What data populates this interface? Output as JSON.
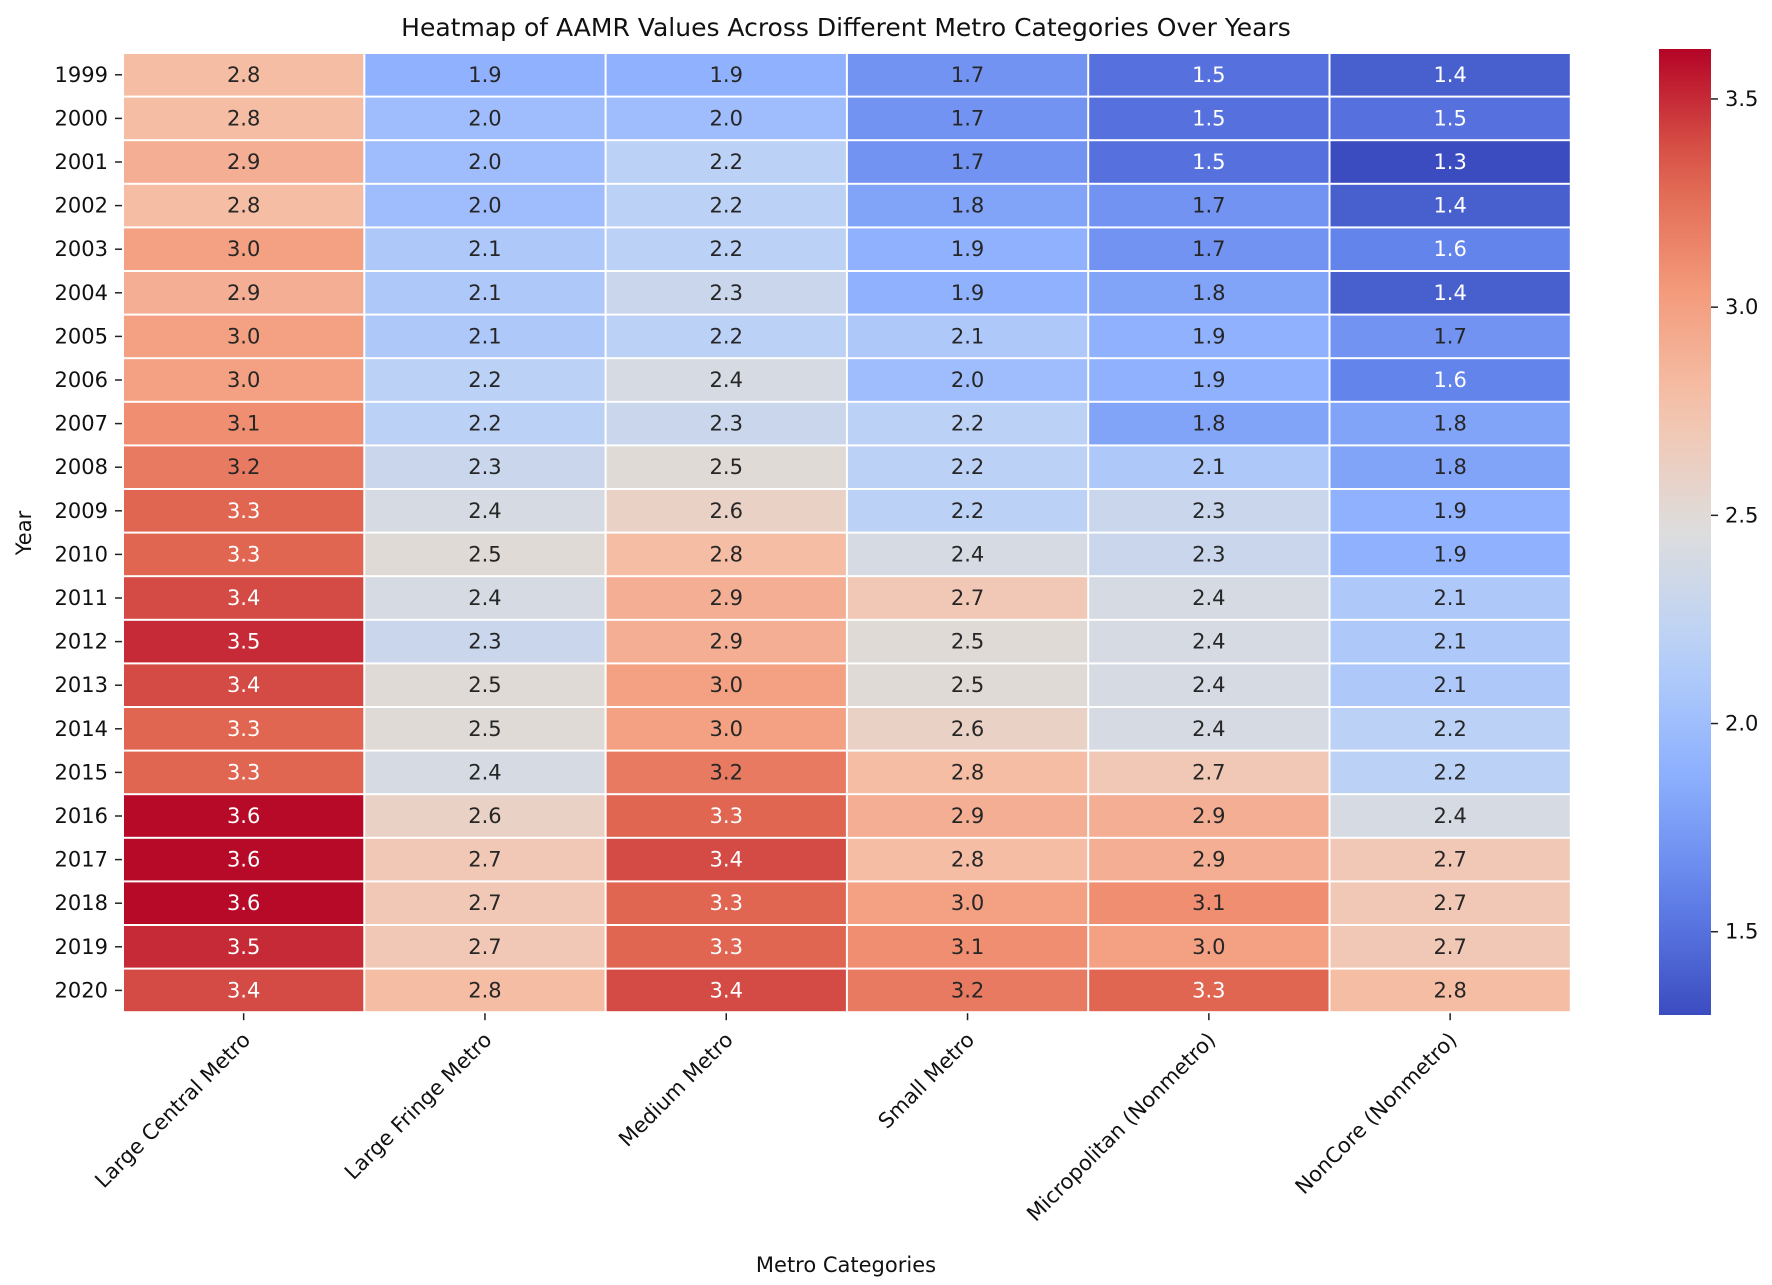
{
  "chart_data": {
    "type": "heatmap",
    "title": "Heatmap of AAMR Values Across Different Metro Categories Over Years",
    "xlabel": "Metro Categories",
    "ylabel": "Year",
    "x_categories": [
      "Large Central Metro",
      "Large Fringe Metro",
      "Medium Metro",
      "Small Metro",
      "Micropolitan (Nonmetro)",
      "NonCore (Nonmetro)"
    ],
    "y_categories": [
      "1999",
      "2000",
      "2001",
      "2002",
      "2003",
      "2004",
      "2005",
      "2006",
      "2007",
      "2008",
      "2009",
      "2010",
      "2011",
      "2012",
      "2013",
      "2014",
      "2015",
      "2016",
      "2017",
      "2018",
      "2019",
      "2020"
    ],
    "values": [
      [
        2.8,
        1.9,
        1.9,
        1.7,
        1.5,
        1.4
      ],
      [
        2.8,
        2.0,
        2.0,
        1.7,
        1.5,
        1.5
      ],
      [
        2.9,
        2.0,
        2.2,
        1.7,
        1.5,
        1.3
      ],
      [
        2.8,
        2.0,
        2.2,
        1.8,
        1.7,
        1.4
      ],
      [
        3.0,
        2.1,
        2.2,
        1.9,
        1.7,
        1.6
      ],
      [
        2.9,
        2.1,
        2.3,
        1.9,
        1.8,
        1.4
      ],
      [
        3.0,
        2.1,
        2.2,
        2.1,
        1.9,
        1.7
      ],
      [
        3.0,
        2.2,
        2.4,
        2.0,
        1.9,
        1.6
      ],
      [
        3.1,
        2.2,
        2.3,
        2.2,
        1.8,
        1.8
      ],
      [
        3.2,
        2.3,
        2.5,
        2.2,
        2.1,
        1.8
      ],
      [
        3.3,
        2.4,
        2.6,
        2.2,
        2.3,
        1.9
      ],
      [
        3.3,
        2.5,
        2.8,
        2.4,
        2.3,
        1.9
      ],
      [
        3.4,
        2.4,
        2.9,
        2.7,
        2.4,
        2.1
      ],
      [
        3.5,
        2.3,
        2.9,
        2.5,
        2.4,
        2.1
      ],
      [
        3.4,
        2.5,
        3.0,
        2.5,
        2.4,
        2.1
      ],
      [
        3.3,
        2.5,
        3.0,
        2.6,
        2.4,
        2.2
      ],
      [
        3.3,
        2.4,
        3.2,
        2.8,
        2.7,
        2.2
      ],
      [
        3.6,
        2.6,
        3.3,
        2.9,
        2.9,
        2.4
      ],
      [
        3.6,
        2.7,
        3.4,
        2.8,
        2.9,
        2.7
      ],
      [
        3.6,
        2.7,
        3.3,
        3.0,
        3.1,
        2.7
      ],
      [
        3.5,
        2.7,
        3.3,
        3.1,
        3.0,
        2.7
      ],
      [
        3.4,
        2.8,
        3.4,
        3.2,
        3.3,
        2.8
      ]
    ],
    "colormap": "coolwarm",
    "vmin": 1.3,
    "vmax": 3.62,
    "colorbar_ticks": [
      {
        "value": 1.5,
        "label": "1.5"
      },
      {
        "value": 2.0,
        "label": "2.0"
      },
      {
        "value": 2.5,
        "label": "2.5"
      },
      {
        "value": 3.0,
        "label": "3.0"
      },
      {
        "value": 3.5,
        "label": "3.5"
      }
    ],
    "annotations_shown": true,
    "grid": false,
    "colorbar_position": "right"
  }
}
